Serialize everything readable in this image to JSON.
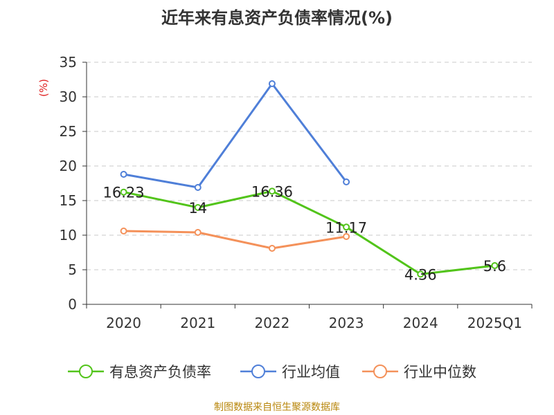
{
  "chart_data": {
    "type": "line",
    "title": "近年来有息资产负债率情况(%)",
    "ylabel": "(%)",
    "xlabel": "",
    "categories": [
      "2020",
      "2021",
      "2022",
      "2023",
      "2024",
      "2025Q1"
    ],
    "yticks": [
      0,
      5,
      10,
      15,
      20,
      25,
      30,
      35
    ],
    "ylim": [
      0,
      35
    ],
    "grid": true,
    "legend_position": "bottom",
    "series": [
      {
        "name": "有息资产负债率",
        "color": "#52c41a",
        "values": [
          16.23,
          14,
          16.36,
          11.17,
          4.36,
          5.6
        ],
        "labels": [
          "16.23",
          "14",
          "16.36",
          "11.17",
          "4.36",
          "5.6"
        ]
      },
      {
        "name": "行业均值",
        "color": "#4f7fd8",
        "values": [
          18.8,
          16.9,
          31.9,
          17.7,
          null,
          null
        ]
      },
      {
        "name": "行业中位数",
        "color": "#f4915a",
        "values": [
          10.6,
          10.4,
          8.1,
          9.8,
          null,
          null
        ]
      }
    ]
  },
  "source": "制图数据来自恒生聚源数据库"
}
